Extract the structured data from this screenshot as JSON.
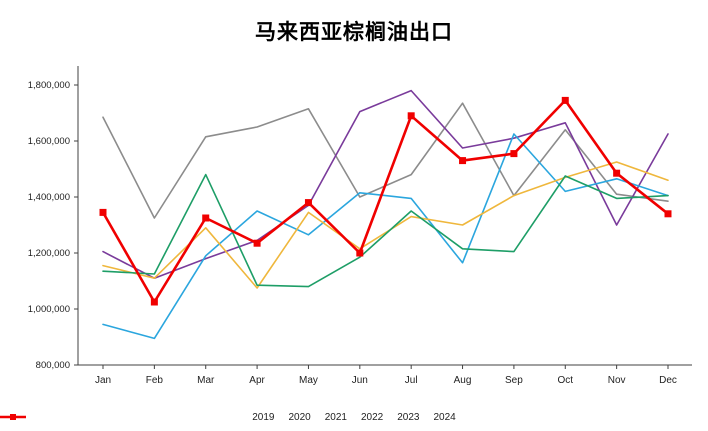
{
  "chart_data": {
    "type": "line",
    "title": "马来西亚棕榈油出口",
    "xlabel": "",
    "ylabel": "",
    "grid": false,
    "legend_position": "bottom",
    "ylim": [
      800000,
      1860000
    ],
    "y_ticks": [
      800000,
      1000000,
      1200000,
      1400000,
      1600000,
      1800000
    ],
    "y_tick_labels": [
      "800,000",
      "1,000,000",
      "1,200,000",
      "1,400,000",
      "1,600,000",
      "1,800,000"
    ],
    "categories": [
      "Jan",
      "Feb",
      "Mar",
      "Apr",
      "May",
      "Jun",
      "Jul",
      "Aug",
      "Sep",
      "Oct",
      "Nov",
      "Dec"
    ],
    "series": [
      {
        "name": "2019",
        "color": "#8C8C8C",
        "line_width": 1.6,
        "marker": "none",
        "values": [
          1685000,
          1325000,
          1615000,
          1650000,
          1715000,
          1400000,
          1480000,
          1735000,
          1405000,
          1640000,
          1410000,
          1385000
        ]
      },
      {
        "name": "2020",
        "color": "#7A3B9B",
        "line_width": 1.6,
        "marker": "none",
        "values": [
          1205000,
          1110000,
          1180000,
          1245000,
          1370000,
          1705000,
          1780000,
          1575000,
          1610000,
          1665000,
          1300000,
          1625000
        ]
      },
      {
        "name": "2021",
        "color": "#2BA6DE",
        "line_width": 1.6,
        "marker": "none",
        "values": [
          945000,
          895000,
          1190000,
          1350000,
          1265000,
          1415000,
          1395000,
          1165000,
          1625000,
          1420000,
          1465000,
          1405000
        ]
      },
      {
        "name": "2022",
        "color": "#EFB73C",
        "line_width": 1.6,
        "marker": "none",
        "values": [
          1155000,
          1110000,
          1290000,
          1075000,
          1345000,
          1215000,
          1330000,
          1300000,
          1405000,
          1470000,
          1525000,
          1460000
        ]
      },
      {
        "name": "2023",
        "color": "#1E9E67",
        "line_width": 1.6,
        "marker": "none",
        "values": [
          1135000,
          1125000,
          1480000,
          1085000,
          1080000,
          1185000,
          1350000,
          1215000,
          1205000,
          1475000,
          1395000,
          1405000
        ]
      },
      {
        "name": "2024",
        "color": "#F00000",
        "line_width": 2.6,
        "marker": "square",
        "values": [
          1345000,
          1025000,
          1325000,
          1235000,
          1380000,
          1200000,
          1690000,
          1530000,
          1555000,
          1745000,
          1485000,
          1340000
        ]
      }
    ]
  }
}
